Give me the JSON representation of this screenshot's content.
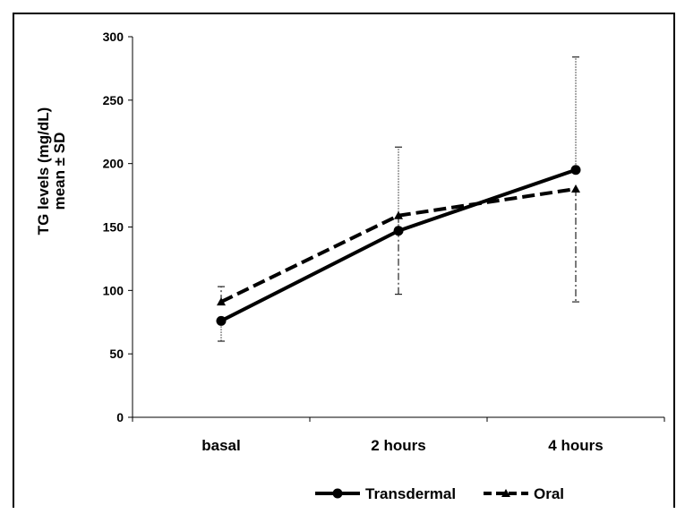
{
  "chart_data": {
    "type": "line",
    "categories": [
      "basal",
      "2 hours",
      "4 hours"
    ],
    "ylabel_lines": [
      "TG levels (mg/dL)",
      "mean ± SD"
    ],
    "ylim": [
      0,
      300
    ],
    "yticks": [
      0,
      50,
      100,
      150,
      200,
      250,
      300
    ],
    "grid": false,
    "legend_position": "bottom",
    "series": [
      {
        "name": "Transdermal",
        "values": [
          76,
          147,
          195
        ],
        "error_lower": [
          60,
          null,
          null
        ],
        "error_upper": [
          null,
          213,
          284
        ],
        "marker": "circle",
        "line_style": "solid",
        "color": "#000000"
      },
      {
        "name": "Oral",
        "values": [
          91,
          159,
          180
        ],
        "error_lower": [
          null,
          97,
          91
        ],
        "error_upper": [
          103,
          null,
          null
        ],
        "marker": "triangle",
        "line_style": "dashed",
        "color": "#000000"
      }
    ]
  }
}
